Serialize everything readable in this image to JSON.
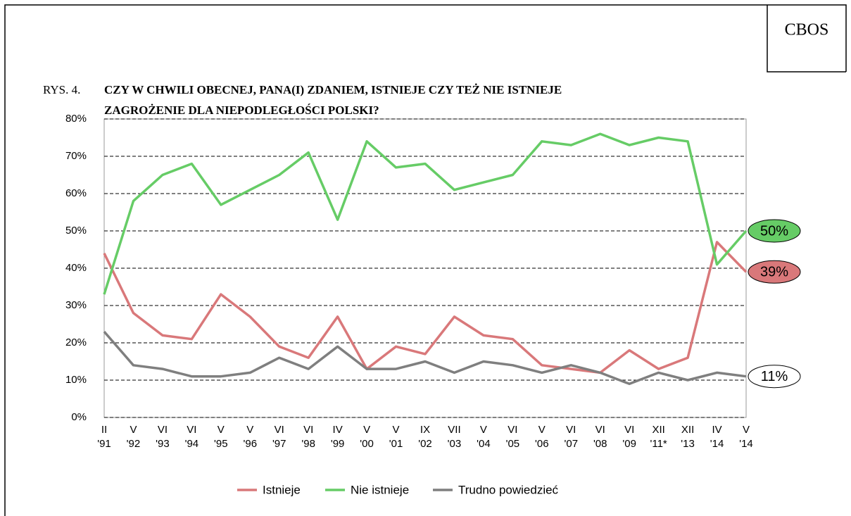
{
  "source": "CBOS",
  "figure_label": "RYS. 4.",
  "chart_data": {
    "type": "line",
    "title": [
      "CZY W CHWILI OBECNEJ, PANA(I) ZDANIEM, ISTNIEJE CZY TEŻ NIE ISTNIEJE",
      "ZAGROŻENIE DLA NIEPODLEGŁOŚCI POLSKI?"
    ],
    "categories": [
      [
        "II",
        "'91"
      ],
      [
        "V",
        "'92"
      ],
      [
        "VI",
        "'93"
      ],
      [
        "VI",
        "'94"
      ],
      [
        "V",
        "'95"
      ],
      [
        "V",
        "'96"
      ],
      [
        "VI",
        "'97"
      ],
      [
        "VI",
        "'98"
      ],
      [
        "IV",
        "'99"
      ],
      [
        "V",
        "'00"
      ],
      [
        "V",
        "'01"
      ],
      [
        "IX",
        "'02"
      ],
      [
        "VII",
        "'03"
      ],
      [
        "V",
        "'04"
      ],
      [
        "VI",
        "'05"
      ],
      [
        "V",
        "'06"
      ],
      [
        "VI",
        "'07"
      ],
      [
        "VI",
        "'08"
      ],
      [
        "VI",
        "'09"
      ],
      [
        "XII",
        "'11*"
      ],
      [
        "XII",
        "'13"
      ],
      [
        "IV",
        "'14"
      ],
      [
        "V",
        "'14"
      ]
    ],
    "series": [
      {
        "name": "Istnieje",
        "color": "#d9787a",
        "values": [
          44,
          28,
          22,
          21,
          33,
          27,
          19,
          16,
          27,
          13,
          19,
          17,
          27,
          22,
          21,
          14,
          13,
          12,
          18,
          13,
          16,
          47,
          39
        ],
        "value_labels": [
          null,
          null,
          null,
          null,
          null,
          null,
          null,
          null,
          null,
          null,
          null,
          null,
          null,
          null,
          null,
          null,
          null,
          null,
          null,
          null,
          null,
          null,
          "39%"
        ]
      },
      {
        "name": "Nie istnieje",
        "color": "#66cc66",
        "values": [
          33,
          58,
          65,
          68,
          57,
          61,
          65,
          71,
          53,
          74,
          67,
          68,
          61,
          63,
          65,
          74,
          73,
          76,
          73,
          75,
          74,
          41,
          50
        ],
        "value_labels": [
          null,
          null,
          null,
          null,
          null,
          null,
          null,
          null,
          null,
          null,
          null,
          null,
          null,
          null,
          null,
          null,
          null,
          null,
          null,
          null,
          null,
          null,
          "50%"
        ]
      },
      {
        "name": "Trudno powiedzieć",
        "color": "#7f7f7f",
        "values": [
          23,
          14,
          13,
          11,
          11,
          12,
          16,
          13,
          19,
          13,
          13,
          15,
          12,
          15,
          14,
          12,
          14,
          12,
          9,
          12,
          10,
          12,
          11
        ],
        "value_labels": [
          null,
          null,
          null,
          null,
          null,
          null,
          null,
          null,
          null,
          null,
          null,
          null,
          null,
          null,
          null,
          null,
          null,
          null,
          null,
          null,
          null,
          null,
          "11%"
        ]
      }
    ],
    "ylim": [
      0,
      80
    ],
    "yticks": [
      {
        "value": 0,
        "label": "0%"
      },
      {
        "value": 10,
        "label": "10%"
      },
      {
        "value": 20,
        "label": "20%"
      },
      {
        "value": 30,
        "label": "30%"
      },
      {
        "value": 40,
        "label": "40%"
      },
      {
        "value": 50,
        "label": "50%"
      },
      {
        "value": 60,
        "label": "60%"
      },
      {
        "value": 70,
        "label": "70%"
      },
      {
        "value": 80,
        "label": "80%"
      }
    ],
    "grid": true,
    "legend": "bottom"
  }
}
